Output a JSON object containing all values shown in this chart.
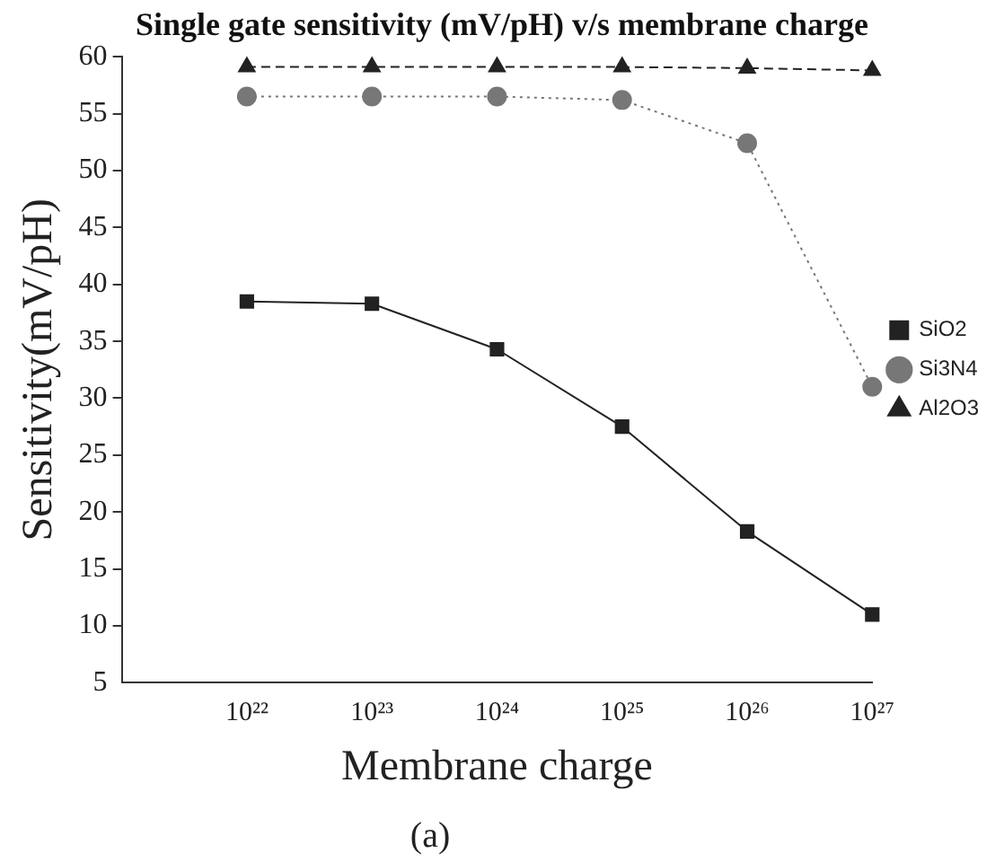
{
  "chart_data": {
    "type": "line",
    "title": "Single gate sensitivity (mV/pH) v/s membrane charge",
    "xlabel": "Membrane charge",
    "ylabel": "Sensitivity(mV/pH)",
    "annotations": [
      "(a)"
    ],
    "x": [
      1e+22,
      1e+23,
      1e+24,
      1e+25,
      1e+26,
      1e+27
    ],
    "series": [
      {
        "name": "SiO2",
        "color": "#222222",
        "marker": "square",
        "line_style": "solid",
        "values": [
          38.5,
          38.3,
          34.3,
          27.5,
          18.3,
          11
        ]
      },
      {
        "name": "Si3N4",
        "color": "#777777",
        "marker": "circle",
        "line_style": "dotted",
        "values": [
          56.5,
          56.5,
          56.5,
          56.2,
          52.4,
          31
        ]
      },
      {
        "name": "Al2O3",
        "color": "#222222",
        "marker": "triangle",
        "line_style": "dashed",
        "values": [
          59.1,
          59.1,
          59.1,
          59.1,
          59,
          58.8
        ]
      }
    ],
    "log": "x",
    "xlim": [
      1e+21,
      1e+27
    ],
    "xticks": [
      {
        "value": 1e+22,
        "label": "10²²"
      },
      {
        "value": 1e+23,
        "label": "10²³"
      },
      {
        "value": 1e+24,
        "label": "10²⁴"
      },
      {
        "value": 1e+25,
        "label": "10²⁵"
      },
      {
        "value": 1e+26,
        "label": "10²⁶"
      },
      {
        "value": 1e+27,
        "label": "10²⁷"
      }
    ],
    "ylim": [
      5,
      60
    ],
    "yticks": [
      5,
      10,
      15,
      20,
      25,
      30,
      35,
      40,
      45,
      50,
      55,
      60
    ],
    "grid": false,
    "legend": "right"
  }
}
